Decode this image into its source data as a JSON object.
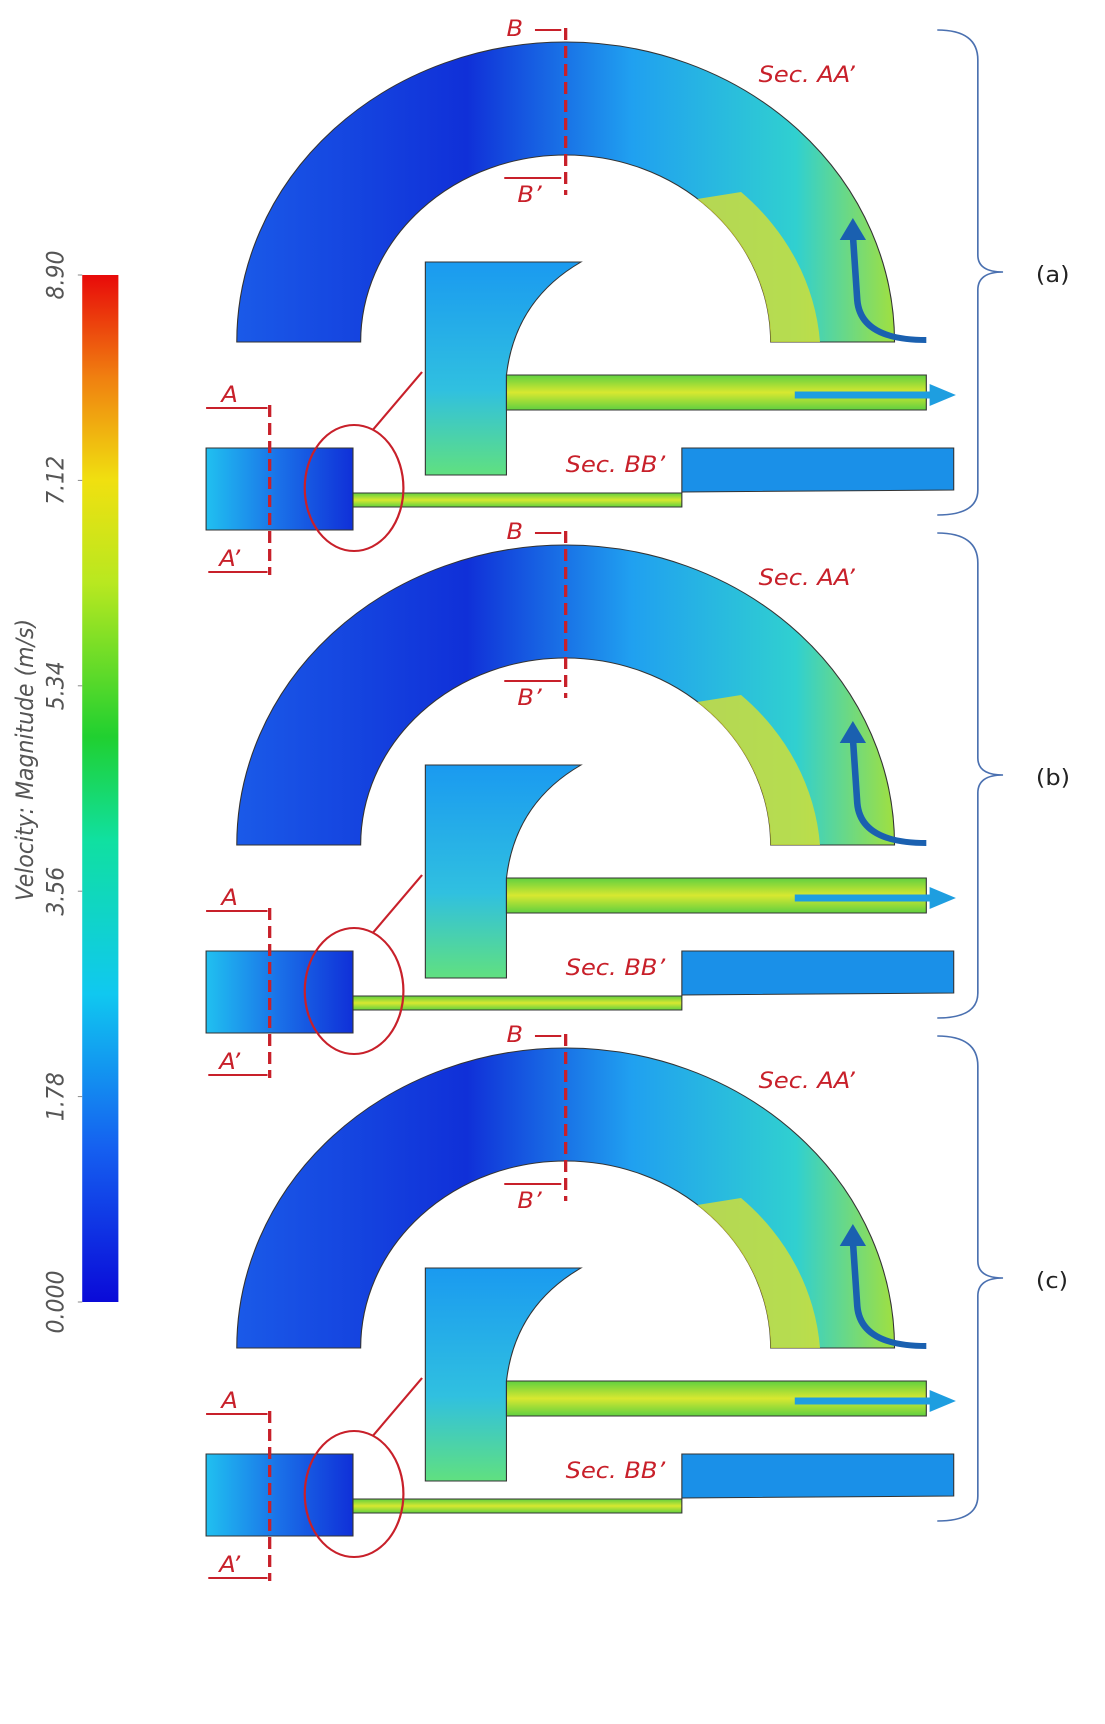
{
  "colorbar": {
    "label": "Velocity: Magnitude (m/s)",
    "range": [
      0,
      8.9
    ],
    "ticks": [
      {
        "value": 0,
        "label": "0.000"
      },
      1.78,
      3.56,
      5.34,
      7.12,
      {
        "value": 8.9,
        "label": "8.90"
      }
    ]
  },
  "panels": [
    {
      "label": "(a)",
      "sec_aa": "Sec. AA’",
      "sec_bb": "Sec. BB’",
      "a": "A",
      "a_prime": "A’",
      "b": "B",
      "b_prime": "B’"
    },
    {
      "label": "(b)",
      "sec_aa": "Sec. AA’",
      "sec_bb": "Sec. BB’",
      "a": "A",
      "a_prime": "A’",
      "b": "B",
      "b_prime": "B’"
    },
    {
      "label": "(c)",
      "sec_aa": "Sec. AA’",
      "sec_bb": "Sec. BB’",
      "a": "A",
      "a_prime": "A’",
      "b": "B",
      "b_prime": "B’"
    }
  ]
}
